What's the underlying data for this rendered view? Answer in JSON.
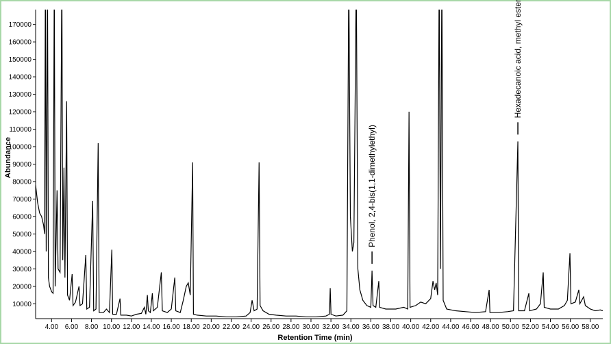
{
  "chart_data": {
    "type": "line",
    "xlabel": "Retention Time (min)",
    "ylabel": "Abundance",
    "color": "#000000",
    "xlim": [
      2.4,
      59.25
    ],
    "ylim": [
      1500,
      178500
    ],
    "xticks": [
      {
        "value": 4,
        "label": "4.00"
      },
      {
        "value": 6,
        "label": "6.00"
      },
      {
        "value": 8,
        "label": "8.00"
      },
      {
        "value": 10,
        "label": "10.00"
      },
      {
        "value": 12,
        "label": "12.00"
      },
      {
        "value": 14,
        "label": "14.00"
      },
      {
        "value": 16,
        "label": "16.00"
      },
      {
        "value": 18,
        "label": "18.00"
      },
      {
        "value": 20,
        "label": "20.00"
      },
      {
        "value": 22,
        "label": "22.00"
      },
      {
        "value": 24,
        "label": "24.00"
      },
      {
        "value": 26,
        "label": "26.00"
      },
      {
        "value": 28,
        "label": "28.00"
      },
      {
        "value": 30,
        "label": "30.00"
      },
      {
        "value": 32,
        "label": "32.00"
      },
      {
        "value": 34,
        "label": "34.00"
      },
      {
        "value": 36,
        "label": "36.00"
      },
      {
        "value": 38,
        "label": "38.00"
      },
      {
        "value": 40,
        "label": "40.00"
      },
      {
        "value": 42,
        "label": "42.00"
      },
      {
        "value": 44,
        "label": "44.00"
      },
      {
        "value": 46,
        "label": "46.00"
      },
      {
        "value": 48,
        "label": "48.00"
      },
      {
        "value": 50,
        "label": "50.00"
      },
      {
        "value": 52,
        "label": "52.00"
      },
      {
        "value": 54,
        "label": "54.00"
      },
      {
        "value": 56,
        "label": "56.00"
      },
      {
        "value": 58,
        "label": "58.00"
      }
    ],
    "yticks": [
      10000,
      20000,
      30000,
      40000,
      50000,
      60000,
      70000,
      80000,
      90000,
      100000,
      110000,
      120000,
      130000,
      140000,
      150000,
      160000,
      170000
    ],
    "annotations": [
      {
        "text": "Phenol, 2,4-bis(1,1-dimethylethyl)",
        "x": 36.12
      },
      {
        "text": "Hexadecanoic acid, methyl ester",
        "x": 50.74
      }
    ],
    "x": [
      2.4,
      2.6,
      2.8,
      3.0,
      3.2,
      3.3,
      3.38,
      3.46,
      3.59,
      3.68,
      3.8,
      4.0,
      4.15,
      4.27,
      4.36,
      4.55,
      4.65,
      4.85,
      5.03,
      5.12,
      5.24,
      5.34,
      5.51,
      5.6,
      5.8,
      6.06,
      6.15,
      6.4,
      6.75,
      6.85,
      7.1,
      7.43,
      7.53,
      7.8,
      8.12,
      8.22,
      8.45,
      8.67,
      8.77,
      9.2,
      9.5,
      9.8,
      10.04,
      10.12,
      10.5,
      10.86,
      10.94,
      11.5,
      12.0,
      12.5,
      13.0,
      13.3,
      13.45,
      13.6,
      13.7,
      13.9,
      14.1,
      14.2,
      14.6,
      15.0,
      15.1,
      15.6,
      16.0,
      16.35,
      16.45,
      16.9,
      17.2,
      17.5,
      17.7,
      17.9,
      18.14,
      18.22,
      18.6,
      19.5,
      20.5,
      21.5,
      22.5,
      23.5,
      23.9,
      24.1,
      24.3,
      24.6,
      24.8,
      24.9,
      25.2,
      25.8,
      26.5,
      27.5,
      28.5,
      29.5,
      30.5,
      31.5,
      31.85,
      31.93,
      32.01,
      32.5,
      33.2,
      33.6,
      33.79,
      33.95,
      34.15,
      34.3,
      34.54,
      34.7,
      34.9,
      35.2,
      35.6,
      36.0,
      36.12,
      36.22,
      36.5,
      36.8,
      36.88,
      37.5,
      38.5,
      39.3,
      39.7,
      39.83,
      39.93,
      40.5,
      41.0,
      41.5,
      42.0,
      42.23,
      42.4,
      42.55,
      42.7,
      42.85,
      42.98,
      43.12,
      43.25,
      43.6,
      44.5,
      45.5,
      46.5,
      47.5,
      47.86,
      47.94,
      48.8,
      49.7,
      50.3,
      50.74,
      50.82,
      51.4,
      51.84,
      51.92,
      52.6,
      53.0,
      53.28,
      53.38,
      54.0,
      54.8,
      55.4,
      55.7,
      55.96,
      56.06,
      56.5,
      56.85,
      56.95,
      57.33,
      57.5,
      58.0,
      58.5,
      59.0,
      59.25
    ],
    "values": [
      78000,
      68000,
      62000,
      60000,
      55000,
      50000,
      200000,
      40000,
      200000,
      25000,
      20000,
      17000,
      16000,
      200000,
      20000,
      75000,
      30000,
      28000,
      200000,
      35000,
      88000,
      25000,
      126000,
      15000,
      12000,
      27000,
      9000,
      11000,
      20000,
      9000,
      10000,
      38000,
      7000,
      8000,
      69000,
      6000,
      7000,
      102000,
      5000,
      5000,
      7000,
      5000,
      41000,
      4000,
      4000,
      13000,
      3500,
      3500,
      3000,
      4000,
      4500,
      8000,
      4000,
      15000,
      6000,
      5000,
      16000,
      6000,
      8000,
      28000,
      6000,
      5000,
      7000,
      25000,
      6000,
      5000,
      12000,
      20000,
      22000,
      15000,
      91000,
      4000,
      3500,
      3000,
      3000,
      2500,
      2500,
      3000,
      5000,
      12000,
      6000,
      7000,
      91000,
      9000,
      6000,
      4000,
      3500,
      3000,
      3000,
      2500,
      2500,
      3000,
      4000,
      19000,
      4000,
      3000,
      3500,
      6000,
      200000,
      60000,
      40000,
      45000,
      200000,
      30000,
      18000,
      12000,
      9000,
      8000,
      29000,
      9000,
      8000,
      23000,
      8000,
      7000,
      7000,
      8000,
      7000,
      120000,
      8000,
      9000,
      11000,
      10000,
      13000,
      23000,
      18000,
      22000,
      15000,
      200000,
      30000,
      200000,
      12000,
      7000,
      6000,
      5500,
      5000,
      5500,
      18000,
      5000,
      5000,
      5500,
      6000,
      103000,
      6000,
      6000,
      16000,
      6000,
      7000,
      10000,
      28000,
      8000,
      7000,
      7000,
      9000,
      12000,
      39000,
      10000,
      11000,
      18000,
      10000,
      14000,
      9000,
      7000,
      6000,
      6500,
      6000
    ]
  }
}
